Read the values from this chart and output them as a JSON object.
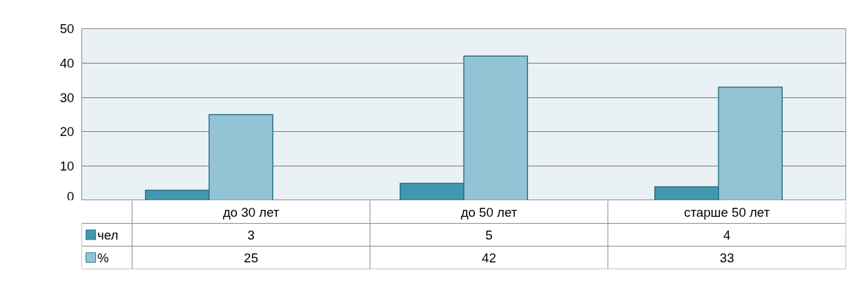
{
  "chart_data": {
    "type": "bar",
    "categories": [
      "до 30 лет",
      "до 50 лет",
      "старше 50 лет"
    ],
    "series": [
      {
        "name": "чел",
        "color": "#4197ae",
        "values": [
          3,
          5,
          4
        ]
      },
      {
        "name": "%",
        "color": "#93c4d6",
        "values": [
          25,
          42,
          33
        ]
      }
    ],
    "ylim": [
      0,
      50
    ],
    "yticks": [
      0,
      10,
      20,
      30,
      40,
      50
    ],
    "grid": "y",
    "legend": "bottom",
    "data_labels": true
  }
}
